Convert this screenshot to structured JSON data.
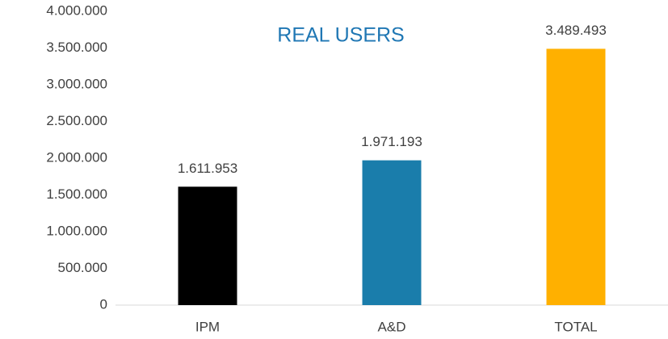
{
  "chart_data": {
    "type": "bar",
    "title": "REAL USERS",
    "categories": [
      "IPM",
      "A&D",
      "TOTAL"
    ],
    "values": [
      1611953,
      1971193,
      3489493
    ],
    "value_labels": [
      "1.611.953",
      "1.971.193",
      "3.489.493"
    ],
    "colors": [
      "#000000",
      "#1a7dab",
      "#ffb000"
    ],
    "ylim": [
      0,
      4000000
    ],
    "yticks": [
      0,
      {
        "value": 500000,
        "label": "500.000"
      },
      {
        "value": 1000000,
        "label": "1.000.000"
      },
      {
        "value": 1500000,
        "label": "1.500.000"
      },
      {
        "value": 2000000,
        "label": "2.000.000"
      },
      {
        "value": 2500000,
        "label": "2.500.000"
      },
      {
        "value": 3000000,
        "label": "3.000.000"
      },
      {
        "value": 3500000,
        "label": "3.500.000"
      },
      {
        "value": 4000000,
        "label": "4.000.000"
      }
    ],
    "grid": false
  }
}
